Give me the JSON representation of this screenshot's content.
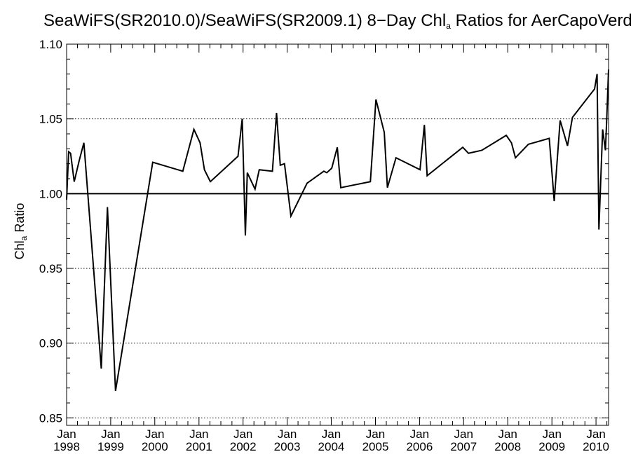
{
  "chart_data": {
    "type": "line",
    "title": {
      "prefix": "SeaWiFS(SR2010.0)/SeaWiFS(SR2009.1) 8−Day Chl",
      "subscript": "a",
      "suffix": " Ratios for AerCapoVerde"
    },
    "ylabel": {
      "main": "Chl",
      "subscript": "a",
      "suffix": " Ratio"
    },
    "xlim": [
      "1998-01-01",
      "2010-04-15"
    ],
    "ylim": [
      0.845,
      1.1
    ],
    "yticks": [
      "0.85",
      "0.90",
      "0.95",
      "1.00",
      "1.05",
      "1.10"
    ],
    "xticks": [
      {
        "month": "Jan",
        "year": "1998",
        "date": "1998-01-01"
      },
      {
        "month": "Jan",
        "year": "1999",
        "date": "1999-01-01"
      },
      {
        "month": "Jan",
        "year": "2000",
        "date": "2000-01-01"
      },
      {
        "month": "Jan",
        "year": "2001",
        "date": "2001-01-01"
      },
      {
        "month": "Jan",
        "year": "2002",
        "date": "2002-01-01"
      },
      {
        "month": "Jan",
        "year": "2003",
        "date": "2003-01-01"
      },
      {
        "month": "Jan",
        "year": "2004",
        "date": "2004-01-01"
      },
      {
        "month": "Jan",
        "year": "2005",
        "date": "2005-01-01"
      },
      {
        "month": "Jan",
        "year": "2006",
        "date": "2006-01-01"
      },
      {
        "month": "Jan",
        "year": "2007",
        "date": "2007-01-01"
      },
      {
        "month": "Jan",
        "year": "2008",
        "date": "2008-01-01"
      },
      {
        "month": "Jan",
        "year": "2009",
        "date": "2009-01-01"
      },
      {
        "month": "Jan",
        "year": "2010",
        "date": "2010-01-01"
      }
    ],
    "reference_line": 1.0,
    "grid": "horizontal dotted",
    "series": [
      {
        "color": "#000000",
        "points": [
          [
            "1998-01-01",
            0.996
          ],
          [
            "1998-01-18",
            1.028
          ],
          [
            "1998-02-03",
            1.027
          ],
          [
            "1998-03-05",
            1.008
          ],
          [
            "1998-04-15",
            1.022
          ],
          [
            "1998-05-24",
            1.034
          ],
          [
            "1998-10-15",
            0.883
          ],
          [
            "1998-12-05",
            0.991
          ],
          [
            "1999-02-10",
            0.868
          ],
          [
            "1999-12-15",
            1.021
          ],
          [
            "2000-08-20",
            1.015
          ],
          [
            "2000-11-20",
            1.043
          ],
          [
            "2001-01-10",
            1.034
          ],
          [
            "2001-02-15",
            1.016
          ],
          [
            "2001-04-05",
            1.008
          ],
          [
            "2001-11-20",
            1.025
          ],
          [
            "2001-12-25",
            1.05
          ],
          [
            "2002-01-20",
            0.972
          ],
          [
            "2002-02-05",
            1.014
          ],
          [
            "2002-04-10",
            1.003
          ],
          [
            "2002-05-15",
            1.016
          ],
          [
            "2002-09-01",
            1.015
          ],
          [
            "2002-10-05",
            1.054
          ],
          [
            "2002-11-05",
            1.019
          ],
          [
            "2002-12-10",
            1.02
          ],
          [
            "2003-02-01",
            0.985
          ],
          [
            "2003-06-15",
            1.007
          ],
          [
            "2003-11-01",
            1.015
          ],
          [
            "2003-11-25",
            1.014
          ],
          [
            "2004-01-05",
            1.017
          ],
          [
            "2004-02-20",
            1.031
          ],
          [
            "2004-03-20",
            1.004
          ],
          [
            "2004-11-20",
            1.008
          ],
          [
            "2005-01-05",
            1.063
          ],
          [
            "2005-03-15",
            1.041
          ],
          [
            "2005-04-10",
            1.004
          ],
          [
            "2005-06-20",
            1.024
          ],
          [
            "2006-01-05",
            1.016
          ],
          [
            "2006-02-10",
            1.046
          ],
          [
            "2006-03-05",
            1.012
          ],
          [
            "2006-12-25",
            1.031
          ],
          [
            "2007-02-10",
            1.027
          ],
          [
            "2007-06-01",
            1.029
          ],
          [
            "2007-12-20",
            1.039
          ],
          [
            "2008-02-01",
            1.034
          ],
          [
            "2008-03-05",
            1.024
          ],
          [
            "2008-06-20",
            1.033
          ],
          [
            "2008-12-10",
            1.037
          ],
          [
            "2009-01-20",
            0.995
          ],
          [
            "2009-03-10",
            1.049
          ],
          [
            "2009-05-10",
            1.032
          ],
          [
            "2009-06-20",
            1.051
          ],
          [
            "2009-12-20",
            1.07
          ],
          [
            "2010-01-10",
            1.08
          ],
          [
            "2010-01-25",
            0.976
          ],
          [
            "2010-02-25",
            1.043
          ],
          [
            "2010-03-20",
            1.029
          ],
          [
            "2010-03-30",
            1.048
          ],
          [
            "2010-04-15",
            1.083
          ]
        ]
      }
    ]
  }
}
